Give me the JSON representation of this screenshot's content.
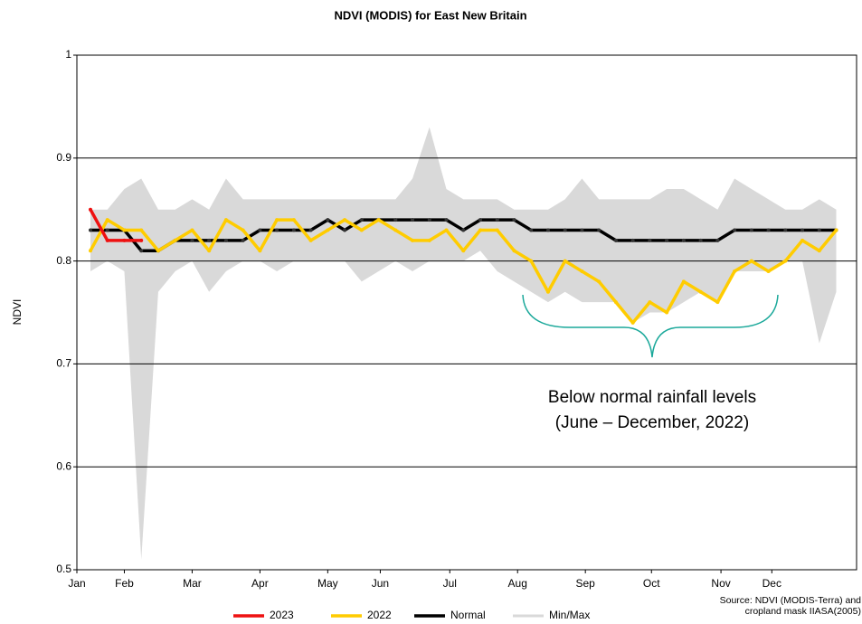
{
  "chart_data": {
    "type": "line",
    "title": "NDVI (MODIS) for East New Britain",
    "y_label": "NDVI",
    "x": [
      1,
      2,
      3,
      4,
      5,
      6,
      7,
      8,
      9,
      10,
      11,
      12,
      13,
      14,
      15,
      16,
      17,
      18,
      19,
      20,
      21,
      22,
      23,
      24,
      25,
      26,
      27,
      28,
      29,
      30,
      31,
      32,
      33,
      34,
      35,
      36,
      37,
      38,
      39,
      40,
      41,
      42,
      43,
      44,
      45
    ],
    "xlim": [
      0.2,
      46.2
    ],
    "xticks": [
      {
        "value": 0.2,
        "label": "Jan"
      },
      {
        "value": 3,
        "label": "Feb"
      },
      {
        "value": 7,
        "label": "Mar"
      },
      {
        "value": 11,
        "label": "Apr"
      },
      {
        "value": 15,
        "label": "May"
      },
      {
        "value": 18.1,
        "label": "Jun"
      },
      {
        "value": 22.2,
        "label": "Jul"
      },
      {
        "value": 26.2,
        "label": "Aug"
      },
      {
        "value": 30.2,
        "label": "Sep"
      },
      {
        "value": 34.1,
        "label": "Oct"
      },
      {
        "value": 38.2,
        "label": "Nov"
      },
      {
        "value": 41.2,
        "label": "Dec"
      }
    ],
    "ylim": [
      0.5,
      1
    ],
    "yticks": [
      0.5,
      0.6,
      0.7,
      0.8,
      0.9,
      1
    ],
    "grid": true,
    "legend": "bottom",
    "band": {
      "name": "Min/Max",
      "color": "#d9d9d9",
      "max": [
        0.85,
        0.85,
        0.87,
        0.88,
        0.85,
        0.85,
        0.86,
        0.85,
        0.88,
        0.86,
        0.86,
        0.86,
        0.86,
        0.86,
        0.86,
        0.86,
        0.86,
        0.86,
        0.86,
        0.88,
        0.93,
        0.87,
        0.86,
        0.86,
        0.86,
        0.85,
        0.85,
        0.85,
        0.86,
        0.88,
        0.86,
        0.86,
        0.86,
        0.86,
        0.87,
        0.87,
        0.86,
        0.85,
        0.88,
        0.87,
        0.86,
        0.85,
        0.85,
        0.86,
        0.85
      ],
      "min": [
        0.79,
        0.8,
        0.79,
        0.51,
        0.77,
        0.79,
        0.8,
        0.77,
        0.79,
        0.8,
        0.8,
        0.79,
        0.8,
        0.8,
        0.8,
        0.8,
        0.78,
        0.79,
        0.8,
        0.79,
        0.8,
        0.8,
        0.8,
        0.81,
        0.79,
        0.78,
        0.77,
        0.76,
        0.77,
        0.76,
        0.76,
        0.76,
        0.74,
        0.75,
        0.75,
        0.76,
        0.77,
        0.76,
        0.79,
        0.79,
        0.79,
        0.8,
        0.8,
        0.72,
        0.77
      ]
    },
    "series": [
      {
        "name": "Normal",
        "color": "#000000",
        "values": [
          0.83,
          0.83,
          0.83,
          0.81,
          0.81,
          0.82,
          0.82,
          0.82,
          0.82,
          0.82,
          0.83,
          0.83,
          0.83,
          0.83,
          0.84,
          0.83,
          0.84,
          0.84,
          0.84,
          0.84,
          0.84,
          0.84,
          0.83,
          0.84,
          0.84,
          0.84,
          0.83,
          0.83,
          0.83,
          0.83,
          0.83,
          0.82,
          0.82,
          0.82,
          0.82,
          0.82,
          0.82,
          0.82,
          0.83,
          0.83,
          0.83,
          0.83,
          0.83,
          0.83,
          0.83
        ]
      },
      {
        "name": "2022",
        "color": "#ffcc00",
        "values": [
          0.81,
          0.84,
          0.83,
          0.83,
          0.81,
          0.82,
          0.83,
          0.81,
          0.84,
          0.83,
          0.81,
          0.84,
          0.84,
          0.82,
          0.83,
          0.84,
          0.83,
          0.84,
          0.83,
          0.82,
          0.82,
          0.83,
          0.81,
          0.83,
          0.83,
          0.81,
          0.8,
          0.77,
          0.8,
          0.79,
          0.78,
          0.76,
          0.74,
          0.76,
          0.75,
          0.78,
          0.77,
          0.76,
          0.79,
          0.8,
          0.79,
          0.8,
          0.82,
          0.81,
          0.83
        ]
      },
      {
        "name": "2023",
        "color": "#ee1111",
        "values": [
          0.85,
          0.82,
          0.82,
          0.82,
          null,
          null,
          null,
          null,
          null,
          null,
          null,
          null,
          null,
          null,
          null,
          null,
          null,
          null,
          null,
          null,
          null,
          null,
          null,
          null,
          null,
          null,
          null,
          null,
          null,
          null,
          null,
          null,
          null,
          null,
          null,
          null,
          null,
          null,
          null,
          null,
          null,
          null,
          null,
          null,
          null
        ]
      }
    ],
    "legend_order": [
      "2023",
      "2022",
      "Normal",
      "Min/Max"
    ],
    "annotation": [
      "Below normal rainfall levels",
      "(June – December, 2022)"
    ],
    "source": [
      "Source: NDVI (MODIS-Terra) and",
      "cropland mask IIASA(2005)"
    ]
  }
}
